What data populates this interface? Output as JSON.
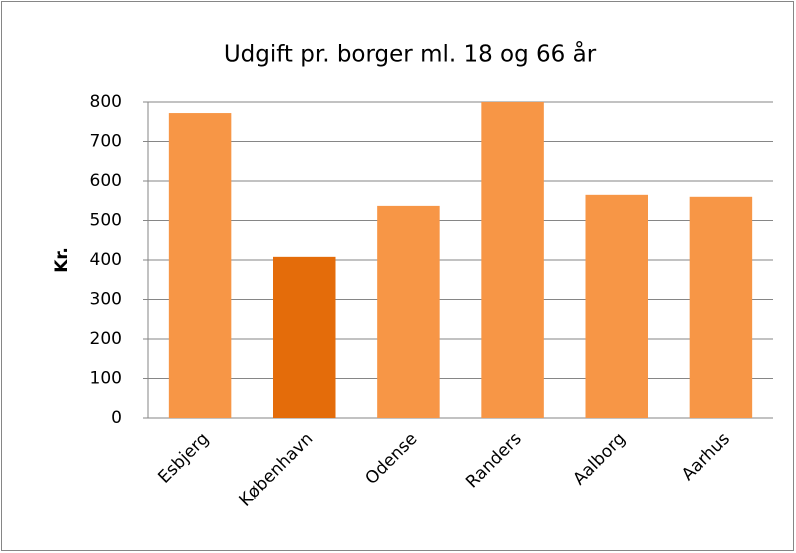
{
  "chart_data": {
    "type": "bar",
    "title": "Udgift pr. borger ml. 18 og 66 år",
    "y_label": "Kr.",
    "categories": [
      "Esbjerg",
      "København",
      "Odense",
      "Randers",
      "Aalborg",
      "Aarhus"
    ],
    "values": [
      772,
      408,
      537,
      800,
      565,
      560
    ],
    "colors": [
      "#f79646",
      "#e46c0a",
      "#f79646",
      "#f79646",
      "#f79646",
      "#f79646"
    ],
    "ylim": [
      0,
      800
    ],
    "yticks": [
      0,
      100,
      200,
      300,
      400,
      500,
      600,
      700,
      800
    ],
    "grid": true
  }
}
